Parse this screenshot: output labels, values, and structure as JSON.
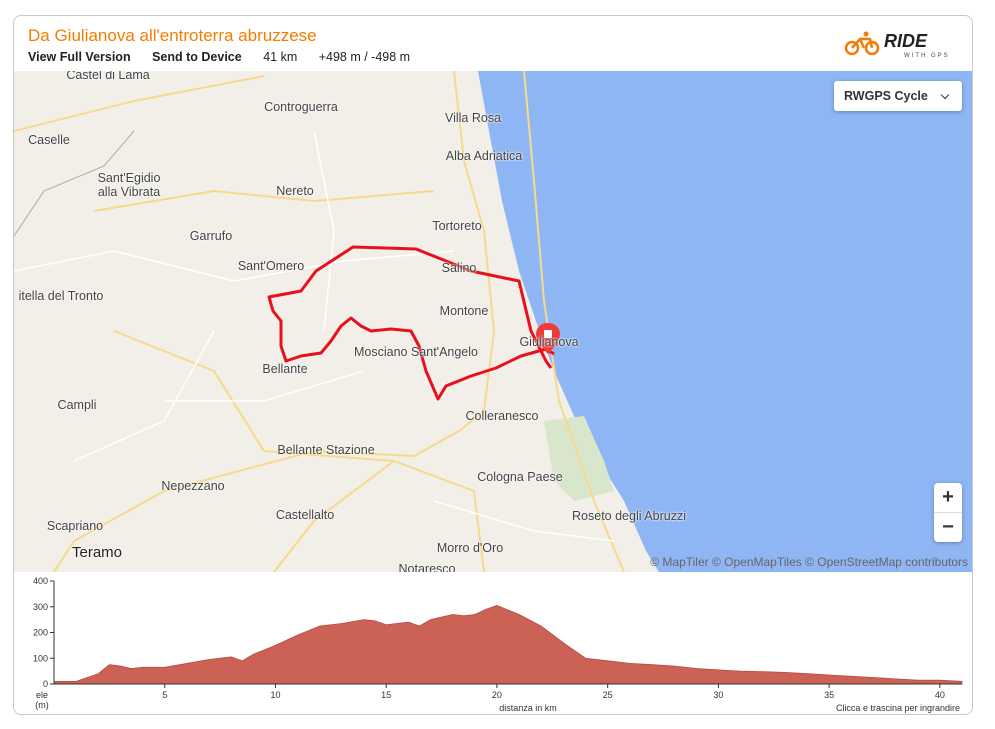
{
  "header": {
    "title": "Da Giulianova all'entroterra abruzzese",
    "links": [
      "View Full Version",
      "Send to Device"
    ],
    "distance": "41 km",
    "climb": "+498 m / -498 m",
    "logo": [
      "RIDE",
      "WITH GPS"
    ]
  },
  "map": {
    "style_selector": "RWGPS Cycle",
    "zoom_in": "+",
    "zoom_out": "−",
    "attribution": "© MapTiler © OpenMapTiles © OpenStreetMap contributors",
    "labels": [
      "Castel di Lama",
      "Controguerra",
      "Villa Rosa",
      "Caselle",
      "Alba Adriatica",
      "Sant'Egidio alla Vibrata",
      "Nereto",
      "Tortoreto",
      "Garrufo",
      "Sant'Omero",
      "Salino",
      "itella del Tronto",
      "Montone",
      "Giulianova",
      "Mosciano Sant'Angelo",
      "Bellante",
      "Campli",
      "Colleranesco",
      "Bellante Stazione",
      "Cologna Paese",
      "Nepezzano",
      "Castellalto",
      "Roseto degli Abruzzi",
      "Scapriano",
      "Teramo",
      "Morro d'Oro",
      "Notaresco"
    ]
  },
  "chart_data": {
    "type": "area",
    "x_label": "distanza in km",
    "y_label": [
      "ele",
      "(m)"
    ],
    "note": "Clicca e trascina per ingrandire",
    "color": "#cc6155",
    "x": [
      0,
      1,
      2,
      2.5,
      3,
      3.5,
      4,
      5,
      6,
      7,
      8,
      8.5,
      9,
      10,
      11,
      12,
      13,
      14,
      14.5,
      15,
      16,
      16.5,
      17,
      18,
      18.5,
      19,
      19.5,
      20,
      21,
      22,
      23,
      24,
      25,
      26,
      27,
      28,
      29,
      30,
      31,
      32,
      33,
      34,
      35,
      36,
      37,
      38,
      39,
      40,
      41
    ],
    "values": [
      10,
      10,
      40,
      75,
      70,
      60,
      65,
      65,
      80,
      95,
      105,
      90,
      115,
      150,
      190,
      225,
      235,
      250,
      245,
      230,
      240,
      225,
      250,
      270,
      265,
      270,
      290,
      305,
      270,
      225,
      160,
      100,
      90,
      80,
      75,
      70,
      60,
      55,
      50,
      48,
      45,
      40,
      35,
      30,
      25,
      20,
      15,
      15,
      10
    ],
    "xlim": [
      0,
      41
    ],
    "ylim": [
      0,
      400
    ],
    "xticks": [
      5,
      10,
      15,
      20,
      25,
      30,
      35,
      40
    ],
    "yticks": [
      0,
      100,
      200,
      300,
      400
    ]
  }
}
